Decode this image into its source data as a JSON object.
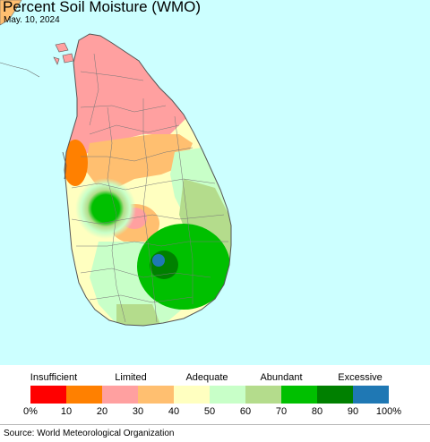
{
  "header": {
    "title": "Percent Soil Moisture (WMO)",
    "date": "May. 10, 2024"
  },
  "legend": {
    "categories": [
      {
        "label": "Insufficient"
      },
      {
        "label": "Limited"
      },
      {
        "label": "Adequate"
      },
      {
        "label": "Abundant"
      },
      {
        "label": "Excessive"
      }
    ],
    "colors": [
      "#ff0000",
      "#ff8000",
      "#ffa0a0",
      "#ffbf70",
      "#ffffc0",
      "#c8ffc8",
      "#b4dc8c",
      "#00c000",
      "#008000",
      "#1f78b4"
    ],
    "ticks": [
      "0%",
      "10",
      "20",
      "30",
      "40",
      "50",
      "60",
      "70",
      "80",
      "90",
      "100%"
    ]
  },
  "footer": {
    "source": "Source: World Meteorological Organization"
  },
  "map": {
    "sea_color": "#ccffff",
    "land_outline_color": "#666666"
  }
}
